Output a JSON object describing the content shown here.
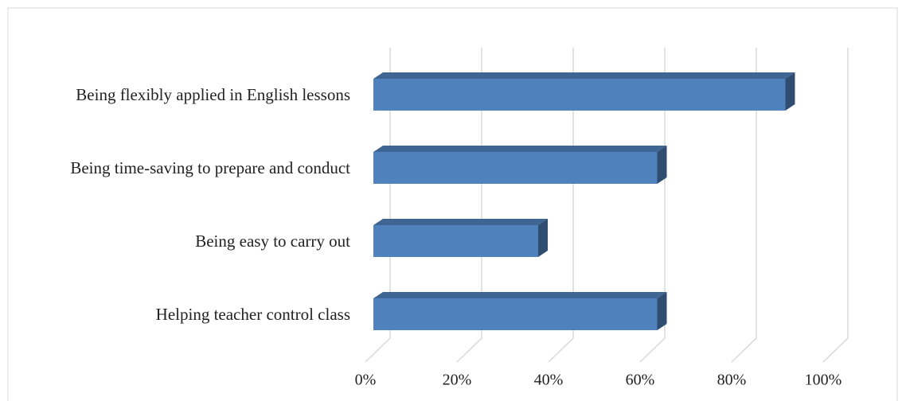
{
  "chart_data": {
    "type": "bar3d",
    "orientation": "horizontal",
    "categories": [
      "Being flexibly applied in English lessons",
      "Being time-saving to prepare and conduct",
      "Being easy to carry out",
      "Helping teacher control class"
    ],
    "values": [
      90,
      62,
      36,
      62
    ],
    "color": "#4f81bd",
    "xlim": [
      0,
      100
    ],
    "xticks": [
      {
        "value": 0,
        "label": "0%"
      },
      {
        "value": 20,
        "label": "20%"
      },
      {
        "value": 40,
        "label": "40%"
      },
      {
        "value": 60,
        "label": "60%"
      },
      {
        "value": 80,
        "label": "80%"
      },
      {
        "value": 100,
        "label": "100%"
      }
    ],
    "grid": true
  }
}
